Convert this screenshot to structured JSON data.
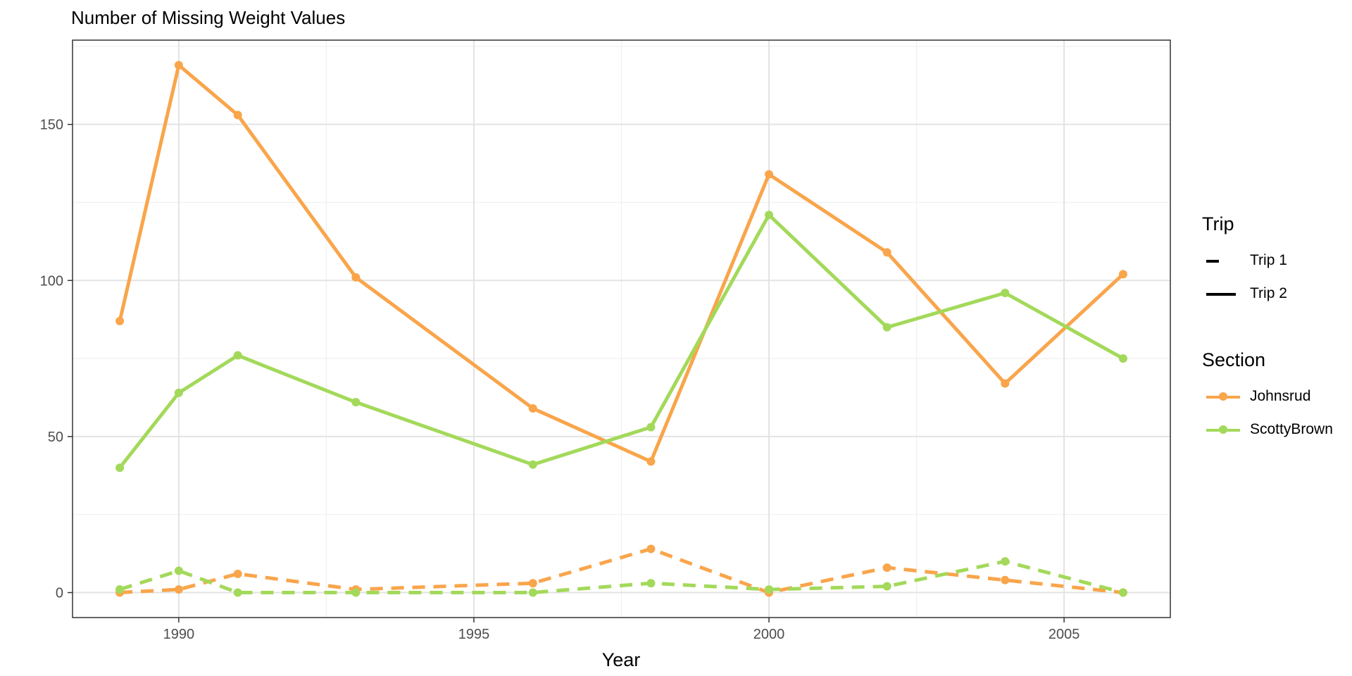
{
  "chart_data": {
    "type": "line",
    "title": "Number of Missing Weight Values",
    "xlabel": "Year",
    "ylabel": "",
    "xlim": [
      1988.2,
      2006.8
    ],
    "ylim": [
      -8,
      177
    ],
    "x_ticks": [
      1990,
      1995,
      2000,
      2005
    ],
    "y_ticks": [
      0,
      50,
      100,
      150
    ],
    "grid": true,
    "legend_position": "right",
    "legend": {
      "trip_title": "Trip",
      "trip_entries": [
        {
          "label": "Trip 1",
          "style": "dashed"
        },
        {
          "label": "Trip 2",
          "style": "solid"
        }
      ],
      "section_title": "Section",
      "section_entries": [
        {
          "label": "Johnsrud",
          "color": "#F9A54B"
        },
        {
          "label": "ScottyBrown",
          "color": "#A3D95A"
        }
      ]
    },
    "series": [
      {
        "section": "Johnsrud",
        "trip": "Trip 2",
        "style": "solid",
        "color": "#F9A54B",
        "x": [
          1989,
          1990,
          1991,
          1993,
          1996,
          1998,
          2000,
          2002,
          2004,
          2006
        ],
        "values": [
          87,
          169,
          153,
          101,
          59,
          42,
          134,
          109,
          67,
          102
        ]
      },
      {
        "section": "ScottyBrown",
        "trip": "Trip 2",
        "style": "solid",
        "color": "#A3D95A",
        "x": [
          1989,
          1990,
          1991,
          1993,
          1996,
          1998,
          2000,
          2002,
          2004,
          2006
        ],
        "values": [
          40,
          64,
          76,
          61,
          41,
          53,
          121,
          85,
          96,
          75
        ]
      },
      {
        "section": "Johnsrud",
        "trip": "Trip 1",
        "style": "dashed",
        "color": "#F9A54B",
        "x": [
          1989,
          1990,
          1991,
          1993,
          1996,
          1998,
          2000,
          2002,
          2004,
          2006
        ],
        "values": [
          0,
          1,
          6,
          1,
          3,
          14,
          0,
          8,
          4,
          0
        ]
      },
      {
        "section": "ScottyBrown",
        "trip": "Trip 1",
        "style": "dashed",
        "color": "#A3D95A",
        "x": [
          1989,
          1990,
          1991,
          1993,
          1996,
          1998,
          2000,
          2002,
          2004,
          2006
        ],
        "values": [
          1,
          7,
          0,
          0,
          0,
          3,
          1,
          2,
          10,
          0
        ]
      }
    ]
  }
}
